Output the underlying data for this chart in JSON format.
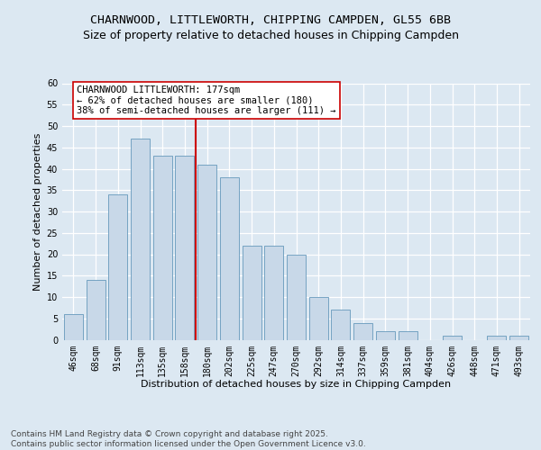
{
  "title": "CHARNWOOD, LITTLEWORTH, CHIPPING CAMPDEN, GL55 6BB",
  "subtitle": "Size of property relative to detached houses in Chipping Campden",
  "xlabel": "Distribution of detached houses by size in Chipping Campden",
  "ylabel": "Number of detached properties",
  "categories": [
    "46sqm",
    "68sqm",
    "91sqm",
    "113sqm",
    "135sqm",
    "158sqm",
    "180sqm",
    "202sqm",
    "225sqm",
    "247sqm",
    "270sqm",
    "292sqm",
    "314sqm",
    "337sqm",
    "359sqm",
    "381sqm",
    "404sqm",
    "426sqm",
    "448sqm",
    "471sqm",
    "493sqm"
  ],
  "values": [
    6,
    14,
    34,
    47,
    43,
    43,
    41,
    38,
    22,
    22,
    20,
    10,
    7,
    4,
    2,
    2,
    0,
    1,
    0,
    1,
    1
  ],
  "bar_color": "#c8d8e8",
  "bar_edge_color": "#6699bb",
  "vline_color": "#cc0000",
  "ylim_max": 60,
  "yticks": [
    0,
    5,
    10,
    15,
    20,
    25,
    30,
    35,
    40,
    45,
    50,
    55,
    60
  ],
  "annotation_line1": "CHARNWOOD LITTLEWORTH: 177sqm",
  "annotation_line2": "← 62% of detached houses are smaller (180)",
  "annotation_line3": "38% of semi-detached houses are larger (111) →",
  "annotation_box_facecolor": "#ffffff",
  "annotation_box_edgecolor": "#cc0000",
  "background_color": "#dce8f2",
  "footer_text": "Contains HM Land Registry data © Crown copyright and database right 2025.\nContains public sector information licensed under the Open Government Licence v3.0.",
  "title_fontsize": 9.5,
  "subtitle_fontsize": 9,
  "axis_label_fontsize": 8,
  "tick_fontsize": 7,
  "annotation_fontsize": 7.5,
  "footer_fontsize": 6.5
}
